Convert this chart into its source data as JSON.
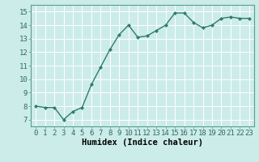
{
  "x": [
    0,
    1,
    2,
    3,
    4,
    5,
    6,
    7,
    8,
    9,
    10,
    11,
    12,
    13,
    14,
    15,
    16,
    17,
    18,
    19,
    20,
    21,
    22,
    23
  ],
  "y": [
    8.0,
    7.9,
    7.9,
    7.0,
    7.6,
    7.9,
    9.6,
    10.9,
    12.2,
    13.3,
    14.0,
    13.1,
    13.2,
    13.6,
    14.0,
    14.9,
    14.9,
    14.2,
    13.8,
    14.0,
    14.5,
    14.6,
    14.5,
    14.5
  ],
  "line_color": "#2d7d6e",
  "marker": "D",
  "marker_size": 2.0,
  "bg_color": "#ccecea",
  "grid_color": "#ffffff",
  "xlabel": "Humidex (Indice chaleur)",
  "xlim": [
    -0.5,
    23.5
  ],
  "ylim": [
    6.5,
    15.5
  ],
  "yticks": [
    7,
    8,
    9,
    10,
    11,
    12,
    13,
    14,
    15
  ],
  "xticks": [
    0,
    1,
    2,
    3,
    4,
    5,
    6,
    7,
    8,
    9,
    10,
    11,
    12,
    13,
    14,
    15,
    16,
    17,
    18,
    19,
    20,
    21,
    22,
    23
  ],
  "tick_label_fontsize": 6.5,
  "xlabel_fontsize": 7.5,
  "line_width": 1.0,
  "spine_color": "#5a9e8e"
}
